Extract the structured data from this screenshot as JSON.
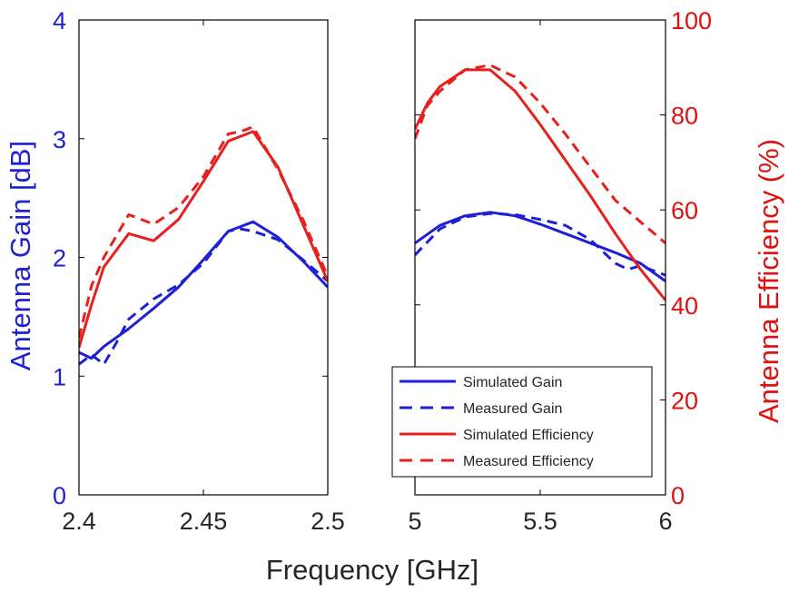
{
  "chart_data": {
    "type": "line",
    "xlabel": "Frequency [GHz]",
    "ylabel_left": "Antenna Gain [dB]",
    "ylabel_right": "Antenna Efficiency (%)",
    "colors": {
      "gain": "#1f1fd6",
      "efficiency": "#e8201d",
      "left_axis": "#1f1fd6",
      "right_axis": "#e01010",
      "frame": "#000000",
      "tick_x": "#262626"
    },
    "left_ylim": [
      0,
      4
    ],
    "left_yticks": [
      0,
      1,
      2,
      3,
      4
    ],
    "right_ylim": [
      0,
      100
    ],
    "right_yticks": [
      0,
      20,
      40,
      60,
      80,
      100
    ],
    "panels": [
      {
        "id": "panel-2g4",
        "xlim": [
          2.4,
          2.5
        ],
        "xticks": [
          2.4,
          2.45,
          2.5
        ],
        "xtick_labels": [
          "2.4",
          "2.45",
          "2.5"
        ],
        "series": [
          {
            "name": "Simulated Gain",
            "axis": "left",
            "style": "solid",
            "color": "gain",
            "x": [
              2.4,
              2.405,
              2.41,
              2.42,
              2.43,
              2.44,
              2.45,
              2.46,
              2.465,
              2.47,
              2.48,
              2.49,
              2.5
            ],
            "y": [
              1.2,
              1.15,
              1.25,
              1.4,
              1.57,
              1.75,
              1.98,
              2.22,
              2.26,
              2.3,
              2.17,
              1.97,
              1.75
            ]
          },
          {
            "name": "Measured Gain",
            "axis": "left",
            "style": "dashed",
            "color": "gain",
            "x": [
              2.4,
              2.405,
              2.41,
              2.415,
              2.42,
              2.43,
              2.44,
              2.45,
              2.46,
              2.465,
              2.47,
              2.48,
              2.49,
              2.5
            ],
            "y": [
              1.1,
              1.18,
              1.1,
              1.28,
              1.48,
              1.65,
              1.77,
              1.95,
              2.22,
              2.24,
              2.22,
              2.15,
              1.98,
              1.8
            ]
          },
          {
            "name": "Simulated Efficiency",
            "axis": "right",
            "style": "solid",
            "color": "efficiency",
            "x": [
              2.4,
              2.405,
              2.41,
              2.42,
              2.43,
              2.44,
              2.45,
              2.46,
              2.465,
              2.47,
              2.48,
              2.49,
              2.5
            ],
            "y": [
              31,
              40,
              48,
              55,
              53.5,
              58,
              66,
              74.5,
              75.5,
              76.5,
              69,
              57,
              45
            ]
          },
          {
            "name": "Measured Efficiency",
            "axis": "right",
            "style": "dashed",
            "color": "efficiency",
            "x": [
              2.4,
              2.405,
              2.41,
              2.42,
              2.43,
              2.44,
              2.45,
              2.46,
              2.465,
              2.47,
              2.48,
              2.49,
              2.5
            ],
            "y": [
              33,
              44,
              50,
              59,
              57,
              60.5,
              67,
              76,
              76.5,
              77.5,
              68.5,
              58,
              46
            ]
          }
        ]
      },
      {
        "id": "panel-5g",
        "xlim": [
          5,
          6
        ],
        "xticks": [
          5,
          5.5,
          6
        ],
        "xtick_labels": [
          "5",
          "5.5",
          "6"
        ],
        "series": [
          {
            "name": "Simulated Gain",
            "axis": "left",
            "style": "solid",
            "color": "gain",
            "x": [
              5,
              5.1,
              5.2,
              5.3,
              5.4,
              5.5,
              5.6,
              5.7,
              5.8,
              5.9,
              6
            ],
            "y": [
              2.12,
              2.27,
              2.35,
              2.38,
              2.35,
              2.28,
              2.2,
              2.12,
              2.04,
              1.95,
              1.8
            ]
          },
          {
            "name": "Measured Gain",
            "axis": "left",
            "style": "dashed",
            "color": "gain",
            "x": [
              5,
              5.1,
              5.2,
              5.3,
              5.4,
              5.5,
              5.6,
              5.7,
              5.75,
              5.8,
              5.85,
              5.9,
              6
            ],
            "y": [
              2.02,
              2.24,
              2.34,
              2.37,
              2.36,
              2.32,
              2.27,
              2.15,
              2.05,
              1.95,
              1.9,
              1.93,
              1.85
            ]
          },
          {
            "name": "Simulated Efficiency",
            "axis": "right",
            "style": "solid",
            "color": "efficiency",
            "x": [
              5,
              5.05,
              5.1,
              5.2,
              5.3,
              5.4,
              5.5,
              5.6,
              5.7,
              5.8,
              5.9,
              6
            ],
            "y": [
              77,
              82.5,
              86,
              89.5,
              89.5,
              85,
              78,
              70.5,
              63,
              55,
              47.5,
              41
            ]
          },
          {
            "name": "Measured Efficiency",
            "axis": "right",
            "style": "dashed",
            "color": "efficiency",
            "x": [
              5,
              5.05,
              5.1,
              5.2,
              5.3,
              5.4,
              5.5,
              5.6,
              5.7,
              5.8,
              5.9,
              6
            ],
            "y": [
              75,
              82,
              85,
              89.5,
              90.5,
              88,
              82.5,
              76,
              69,
              62,
              57.5,
              53
            ]
          }
        ]
      }
    ],
    "legend": {
      "placement": "bottom-right of right panel",
      "entries": [
        {
          "label": "Simulated Gain",
          "color": "gain",
          "style": "solid"
        },
        {
          "label": "Measured Gain",
          "color": "gain",
          "style": "dashed"
        },
        {
          "label": "Simulated Efficiency",
          "color": "efficiency",
          "style": "solid"
        },
        {
          "label": "Measured Efficiency",
          "color": "efficiency",
          "style": "dashed"
        }
      ]
    }
  }
}
